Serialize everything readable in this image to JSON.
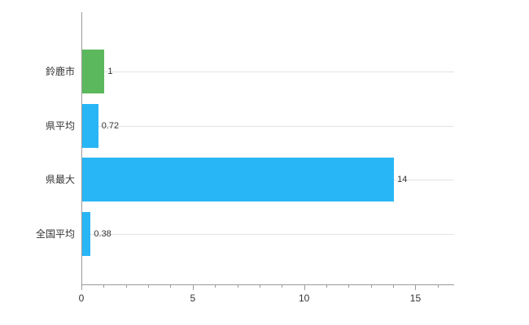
{
  "chart_data": {
    "type": "bar",
    "orientation": "horizontal",
    "title": "",
    "xlabel": "",
    "ylabel": "",
    "categories": [
      "鈴鹿市",
      "県平均",
      "県最大",
      "全国平均"
    ],
    "values": [
      1,
      0.72,
      14,
      0.38
    ],
    "value_labels": [
      "1",
      "0.72",
      "14",
      "0.38"
    ],
    "bar_colors": [
      "#5cb85c",
      "#29b6f6",
      "#29b6f6",
      "#29b6f6"
    ],
    "xlim": [
      0,
      16.7
    ],
    "x_ticks": [
      0,
      5,
      10,
      15
    ],
    "x_tick_labels": [
      "0",
      "5",
      "10",
      "15"
    ],
    "minor_tick_step": 1,
    "grid": "horizontal",
    "legend": "none",
    "axis_color": "#9a9a9a",
    "grid_color": "#e3e3e3",
    "text_color": "#333333"
  }
}
